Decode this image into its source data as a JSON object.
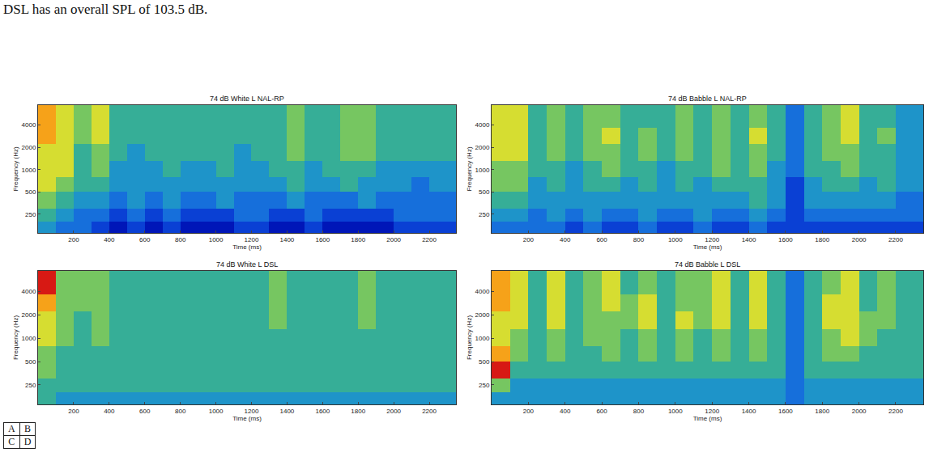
{
  "caption": "DSL has an overall SPL of 103.5 dB.",
  "panel_key": [
    [
      "A",
      "B"
    ],
    [
      "C",
      "D"
    ]
  ],
  "chart_data": [
    {
      "type": "heatmap",
      "title": "74 dB White L NAL-RP",
      "xlabel": "Time (ms)",
      "ylabel": "Frequency (Hz)",
      "x_edges": [
        0,
        100,
        200,
        300,
        400,
        500,
        600,
        700,
        800,
        900,
        1000,
        1100,
        1200,
        1300,
        1400,
        1500,
        1600,
        1700,
        1800,
        1900,
        2000,
        2100,
        2200,
        2350
      ],
      "y_edges": [
        140,
        200,
        300,
        500,
        800,
        1300,
        2200,
        3700,
        7400
      ],
      "z": [
        [
          4,
          3,
          3,
          2,
          1,
          2,
          1,
          2,
          1,
          1,
          1,
          2,
          2,
          1,
          1,
          2,
          1,
          1,
          1,
          1,
          2,
          2,
          2
        ],
        [
          5,
          4,
          3,
          3,
          2,
          3,
          2,
          3,
          2,
          2,
          2,
          3,
          3,
          2,
          2,
          3,
          2,
          2,
          2,
          2,
          3,
          3,
          3
        ],
        [
          6,
          5,
          4,
          4,
          3,
          4,
          3,
          4,
          3,
          3,
          4,
          3,
          3,
          3,
          4,
          3,
          3,
          3,
          4,
          3,
          3,
          3,
          3
        ],
        [
          7,
          6,
          5,
          5,
          4,
          4,
          4,
          4,
          4,
          4,
          4,
          4,
          4,
          4,
          5,
          4,
          4,
          5,
          4,
          4,
          4,
          3,
          4
        ],
        [
          7,
          7,
          5,
          6,
          4,
          4,
          4,
          5,
          4,
          4,
          5,
          4,
          4,
          5,
          5,
          4,
          5,
          5,
          5,
          4,
          4,
          4,
          4
        ],
        [
          7,
          7,
          5,
          6,
          5,
          4,
          5,
          5,
          5,
          5,
          5,
          4,
          5,
          5,
          6,
          5,
          5,
          6,
          6,
          5,
          5,
          5,
          5
        ],
        [
          8,
          7,
          6,
          7,
          5,
          5,
          5,
          5,
          5,
          5,
          5,
          5,
          5,
          5,
          6,
          5,
          5,
          6,
          6,
          5,
          5,
          5,
          5
        ],
        [
          8,
          7,
          6,
          7,
          5,
          5,
          5,
          5,
          5,
          5,
          5,
          5,
          5,
          5,
          6,
          5,
          5,
          6,
          6,
          5,
          5,
          5,
          5
        ]
      ],
      "zlim": [
        0,
        9
      ],
      "xlim": [
        0,
        2350
      ],
      "ylim": [
        140,
        7400
      ],
      "xticks": [
        200,
        400,
        600,
        800,
        1000,
        1200,
        1400,
        1600,
        1800,
        2000,
        2200
      ],
      "yticks": [
        250,
        500,
        1000,
        2000,
        4000
      ],
      "log": "y",
      "grid": false
    },
    {
      "type": "heatmap",
      "title": "74 dB Babble L NAL-RP",
      "xlabel": "Time (ms)",
      "ylabel": "Frequency (Hz)",
      "x_edges": [
        0,
        100,
        200,
        300,
        400,
        500,
        600,
        700,
        800,
        900,
        1000,
        1100,
        1200,
        1300,
        1400,
        1500,
        1600,
        1700,
        1800,
        1900,
        2000,
        2100,
        2200,
        2350
      ],
      "y_edges": [
        140,
        200,
        300,
        500,
        800,
        1300,
        2200,
        3700,
        7400
      ],
      "z": [
        [
          3,
          3,
          3,
          3,
          2,
          3,
          2,
          2,
          3,
          2,
          2,
          3,
          2,
          2,
          3,
          2,
          2,
          2,
          2,
          2,
          2,
          2,
          2
        ],
        [
          4,
          4,
          3,
          4,
          3,
          4,
          3,
          3,
          4,
          3,
          3,
          4,
          3,
          3,
          4,
          3,
          2,
          3,
          3,
          3,
          3,
          3,
          3
        ],
        [
          5,
          5,
          4,
          4,
          4,
          4,
          4,
          4,
          4,
          4,
          4,
          4,
          4,
          4,
          5,
          4,
          2,
          4,
          4,
          4,
          4,
          4,
          3
        ],
        [
          6,
          6,
          4,
          5,
          4,
          5,
          5,
          4,
          5,
          4,
          5,
          4,
          5,
          5,
          5,
          4,
          2,
          4,
          5,
          5,
          4,
          5,
          4
        ],
        [
          6,
          6,
          5,
          5,
          4,
          5,
          6,
          5,
          5,
          4,
          5,
          5,
          6,
          5,
          6,
          4,
          3,
          5,
          5,
          6,
          5,
          5,
          4
        ],
        [
          7,
          7,
          5,
          6,
          5,
          6,
          6,
          5,
          6,
          5,
          6,
          5,
          6,
          5,
          6,
          5,
          3,
          5,
          6,
          6,
          5,
          5,
          4
        ],
        [
          7,
          7,
          5,
          6,
          5,
          6,
          7,
          5,
          6,
          5,
          6,
          5,
          6,
          5,
          7,
          5,
          3,
          5,
          6,
          7,
          5,
          6,
          4
        ],
        [
          7,
          7,
          5,
          6,
          5,
          6,
          6,
          5,
          5,
          5,
          6,
          5,
          6,
          5,
          6,
          5,
          3,
          5,
          6,
          7,
          5,
          5,
          4
        ]
      ],
      "zlim": [
        0,
        9
      ],
      "xlim": [
        0,
        2350
      ],
      "ylim": [
        140,
        7400
      ],
      "xticks": [
        200,
        400,
        600,
        800,
        1000,
        1200,
        1400,
        1600,
        1800,
        2000,
        2200
      ],
      "yticks": [
        250,
        500,
        1000,
        2000,
        4000
      ],
      "log": "y",
      "grid": false
    },
    {
      "type": "heatmap",
      "title": "74 dB White L DSL",
      "xlabel": "Time (ms)",
      "ylabel": "Frequency (Hz)",
      "x_edges": [
        0,
        100,
        200,
        300,
        400,
        500,
        600,
        700,
        800,
        900,
        1000,
        1100,
        1200,
        1300,
        1400,
        1500,
        1600,
        1700,
        1800,
        1900,
        2000,
        2100,
        2200,
        2350
      ],
      "y_edges": [
        140,
        200,
        300,
        500,
        800,
        1300,
        2200,
        3700,
        7400
      ],
      "z": [
        [
          5,
          4,
          4,
          4,
          4,
          4,
          4,
          4,
          4,
          4,
          4,
          4,
          4,
          4,
          4,
          4,
          4,
          4,
          4,
          4,
          4,
          4,
          4
        ],
        [
          5,
          5,
          5,
          5,
          5,
          5,
          5,
          5,
          5,
          5,
          5,
          5,
          5,
          5,
          5,
          5,
          5,
          5,
          5,
          5,
          5,
          5,
          5
        ],
        [
          6,
          5,
          5,
          5,
          5,
          5,
          5,
          5,
          5,
          5,
          5,
          5,
          5,
          5,
          5,
          5,
          5,
          5,
          5,
          5,
          5,
          5,
          5
        ],
        [
          6,
          5,
          5,
          5,
          5,
          5,
          5,
          5,
          5,
          5,
          5,
          5,
          5,
          5,
          5,
          5,
          5,
          5,
          5,
          5,
          5,
          5,
          5
        ],
        [
          7,
          6,
          5,
          6,
          5,
          5,
          5,
          5,
          5,
          5,
          5,
          5,
          5,
          5,
          5,
          5,
          5,
          5,
          5,
          5,
          5,
          5,
          5
        ],
        [
          7,
          6,
          5,
          6,
          5,
          5,
          5,
          5,
          5,
          5,
          5,
          5,
          5,
          6,
          5,
          5,
          5,
          5,
          6,
          5,
          5,
          5,
          5
        ],
        [
          8,
          6,
          6,
          6,
          5,
          5,
          5,
          5,
          5,
          5,
          5,
          5,
          5,
          6,
          5,
          5,
          5,
          5,
          6,
          5,
          5,
          5,
          5
        ],
        [
          9,
          6,
          6,
          6,
          5,
          5,
          5,
          5,
          5,
          5,
          5,
          5,
          5,
          6,
          5,
          5,
          5,
          5,
          6,
          5,
          5,
          5,
          5
        ]
      ],
      "zlim": [
        0,
        9
      ],
      "xlim": [
        0,
        2350
      ],
      "ylim": [
        140,
        7400
      ],
      "xticks": [
        200,
        400,
        600,
        800,
        1000,
        1200,
        1400,
        1600,
        1800,
        2000,
        2200
      ],
      "yticks": [
        250,
        500,
        1000,
        2000,
        4000
      ],
      "log": "y",
      "grid": false
    },
    {
      "type": "heatmap",
      "title": "74 dB Babble L DSL",
      "xlabel": "Time (ms)",
      "ylabel": "Frequency (Hz)",
      "x_edges": [
        0,
        100,
        200,
        300,
        400,
        500,
        600,
        700,
        800,
        900,
        1000,
        1100,
        1200,
        1300,
        1400,
        1500,
        1600,
        1700,
        1800,
        1900,
        2000,
        2100,
        2200,
        2350
      ],
      "y_edges": [
        140,
        200,
        300,
        500,
        800,
        1300,
        2200,
        3700,
        7400
      ],
      "z": [
        [
          4,
          4,
          4,
          4,
          4,
          4,
          4,
          4,
          4,
          4,
          4,
          4,
          4,
          4,
          4,
          4,
          3,
          4,
          4,
          4,
          4,
          4,
          4
        ],
        [
          6,
          4,
          4,
          4,
          4,
          4,
          4,
          4,
          4,
          4,
          4,
          4,
          4,
          4,
          4,
          4,
          3,
          4,
          4,
          4,
          4,
          4,
          4
        ],
        [
          9,
          5,
          5,
          5,
          5,
          5,
          5,
          5,
          5,
          5,
          5,
          5,
          5,
          5,
          5,
          5,
          3,
          5,
          5,
          5,
          5,
          5,
          5
        ],
        [
          8,
          6,
          5,
          6,
          5,
          5,
          6,
          5,
          6,
          5,
          6,
          5,
          6,
          5,
          6,
          5,
          3,
          5,
          6,
          6,
          5,
          5,
          5
        ],
        [
          7,
          6,
          5,
          6,
          5,
          6,
          6,
          5,
          6,
          5,
          6,
          5,
          6,
          5,
          6,
          5,
          3,
          5,
          6,
          7,
          6,
          5,
          5
        ],
        [
          7,
          7,
          5,
          7,
          5,
          6,
          6,
          6,
          7,
          5,
          7,
          6,
          7,
          5,
          7,
          5,
          3,
          5,
          7,
          7,
          6,
          6,
          5
        ],
        [
          8,
          7,
          5,
          7,
          5,
          6,
          7,
          6,
          7,
          5,
          6,
          6,
          7,
          5,
          7,
          5,
          3,
          5,
          7,
          7,
          5,
          6,
          5
        ],
        [
          8,
          7,
          5,
          7,
          5,
          6,
          7,
          5,
          6,
          5,
          6,
          6,
          7,
          5,
          7,
          5,
          3,
          5,
          6,
          7,
          5,
          6,
          5
        ]
      ],
      "zlim": [
        0,
        9
      ],
      "xlim": [
        0,
        2350
      ],
      "ylim": [
        140,
        7400
      ],
      "xticks": [
        200,
        400,
        600,
        800,
        1000,
        1200,
        1400,
        1600,
        1800,
        2000,
        2200
      ],
      "yticks": [
        250,
        500,
        1000,
        2000,
        4000
      ],
      "log": "y",
      "grid": false
    }
  ]
}
